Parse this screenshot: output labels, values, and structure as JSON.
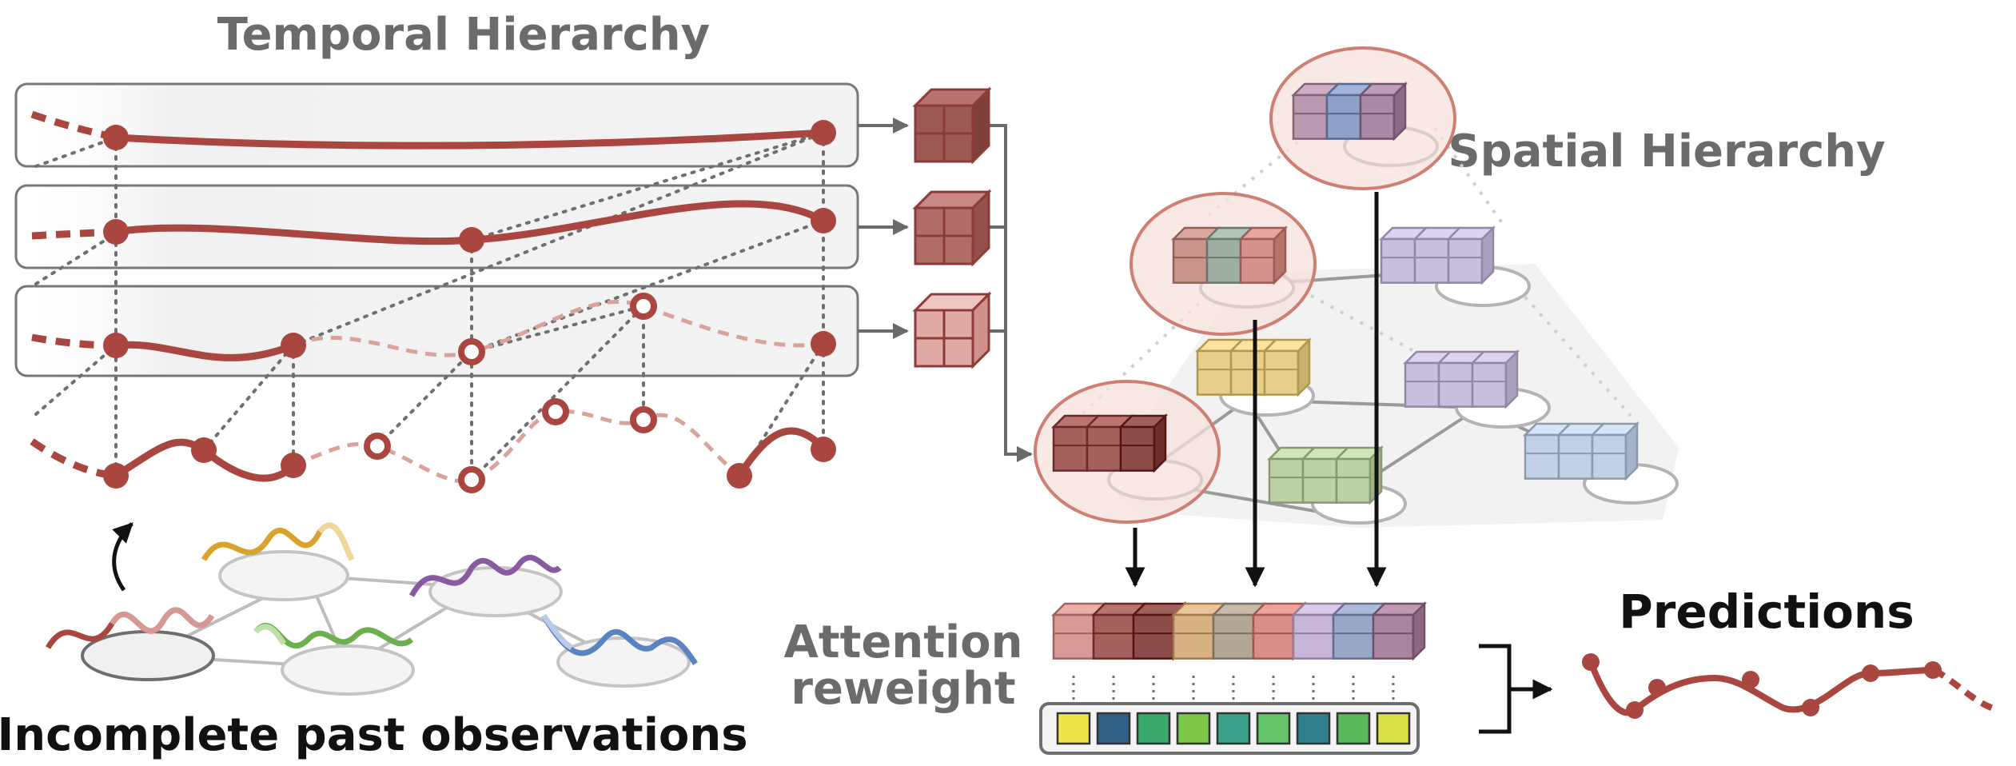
{
  "labels": {
    "temporal_title": "Temporal Hierarchy",
    "spatial_title": "Spatial Hierarchy",
    "predictions": "Predictions",
    "attention_line1": "Attention",
    "attention_line2": "reweight",
    "incomplete": "Incomplete past observations"
  },
  "colors": {
    "series_red": "#a9463f",
    "series_red_light": "#d9a29b",
    "node_red": "#b94a44",
    "gray_line": "#6f6f6f",
    "panel_fill": "#f2f2f2",
    "panel_stroke": "#777777",
    "arrow": "#6a6a6a",
    "ellipse_highlight_fill": "#f5ddd8",
    "ellipse_highlight_stroke": "#cf7e74",
    "cube_dark_red": "#8c4c4a",
    "cube_mid_red": "#a4605c",
    "cube_light_red": "#d4a19d",
    "cube_yellow": "#e7cf8a",
    "cube_green": "#bcd2a6",
    "cube_purple": "#c9bedc",
    "cube_blue": "#c3d1e6",
    "curve_yellow": "#d7a32c",
    "curve_purple": "#8a5aa0",
    "curve_green": "#6bb04c",
    "curve_blue": "#5a83c0",
    "curve_pink": "#d69893",
    "weight_colors": [
      "#f0e44a",
      "#2f5f86",
      "#3aa76c",
      "#7cc94a",
      "#3aa28a",
      "#66c56a",
      "#2f7f8e",
      "#57b95a",
      "#d8e043"
    ]
  },
  "icons": {
    "panel_outputs": "cube-stack-icon",
    "cycle_arrow": "curved-arrow-icon",
    "bracket": "bracket-arrow-icon"
  }
}
